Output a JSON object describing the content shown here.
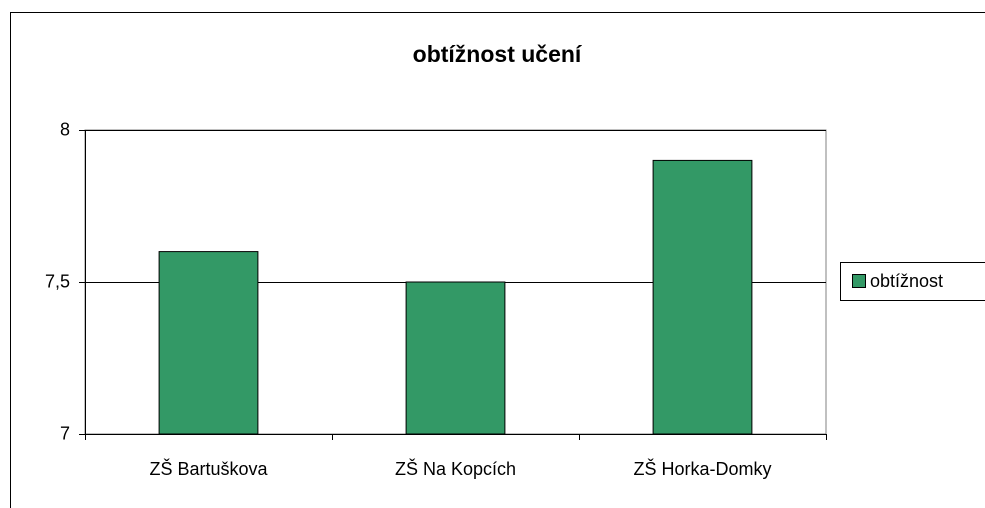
{
  "chart_data": {
    "type": "bar",
    "title": "obtížnost učení",
    "categories": [
      "ZŠ Bartuškova",
      "ZŠ Na Kopcích",
      "ZŠ Horka-Domky"
    ],
    "series": [
      {
        "name": "obtížnost",
        "color": "#339966",
        "values": [
          7.6,
          7.5,
          7.9
        ]
      }
    ],
    "ylim": [
      7,
      8
    ],
    "yticks": [
      7,
      {
        "value": 7.5,
        "label": "7,5"
      },
      8
    ],
    "grid": true,
    "legend": "right"
  }
}
